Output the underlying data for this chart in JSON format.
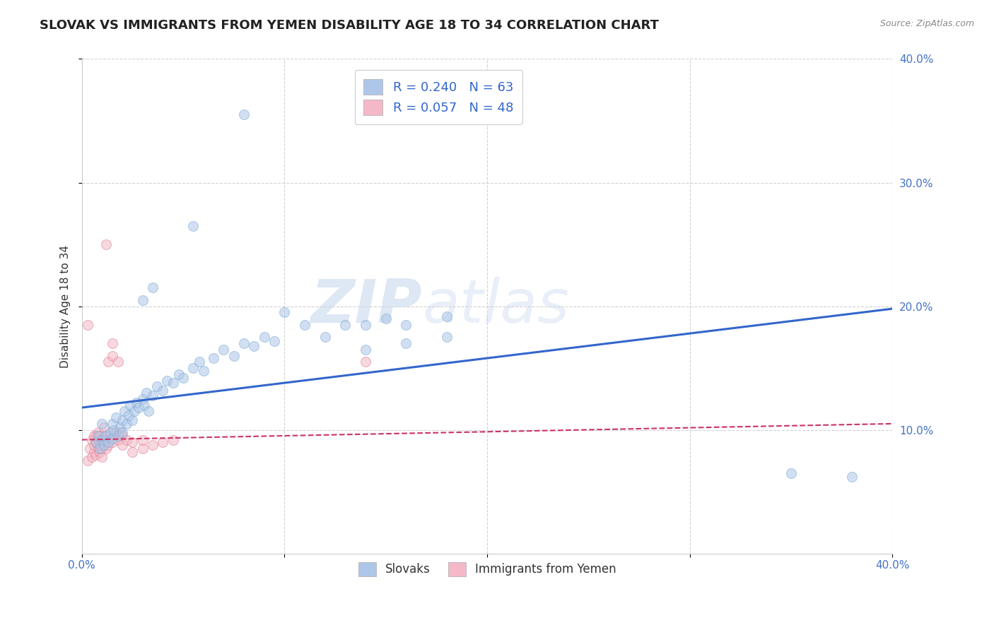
{
  "title": "SLOVAK VS IMMIGRANTS FROM YEMEN DISABILITY AGE 18 TO 34 CORRELATION CHART",
  "source": "Source: ZipAtlas.com",
  "ylabel": "Disability Age 18 to 34",
  "xlim": [
    0.0,
    0.4
  ],
  "ylim": [
    0.0,
    0.4
  ],
  "xticks": [
    0.0,
    0.1,
    0.2,
    0.3,
    0.4
  ],
  "yticks": [
    0.1,
    0.2,
    0.3,
    0.4
  ],
  "xticklabels": [
    "0.0%",
    "",
    "",
    "",
    "40.0%"
  ],
  "yticklabels_right": [
    "10.0%",
    "20.0%",
    "30.0%",
    "40.0%"
  ],
  "legend_entries": [
    {
      "label": "R = 0.240   N = 63",
      "color": "#aec6e8"
    },
    {
      "label": "R = 0.057   N = 48",
      "color": "#f4b8c8"
    }
  ],
  "blue_scatter": [
    [
      0.007,
      0.09
    ],
    [
      0.008,
      0.095
    ],
    [
      0.009,
      0.085
    ],
    [
      0.01,
      0.092
    ],
    [
      0.01,
      0.105
    ],
    [
      0.011,
      0.088
    ],
    [
      0.012,
      0.095
    ],
    [
      0.013,
      0.09
    ],
    [
      0.014,
      0.098
    ],
    [
      0.015,
      0.093
    ],
    [
      0.015,
      0.105
    ],
    [
      0.016,
      0.1
    ],
    [
      0.017,
      0.11
    ],
    [
      0.018,
      0.095
    ],
    [
      0.019,
      0.102
    ],
    [
      0.02,
      0.098
    ],
    [
      0.02,
      0.108
    ],
    [
      0.021,
      0.115
    ],
    [
      0.022,
      0.105
    ],
    [
      0.023,
      0.112
    ],
    [
      0.024,
      0.12
    ],
    [
      0.025,
      0.108
    ],
    [
      0.026,
      0.115
    ],
    [
      0.027,
      0.122
    ],
    [
      0.028,
      0.118
    ],
    [
      0.03,
      0.125
    ],
    [
      0.031,
      0.12
    ],
    [
      0.032,
      0.13
    ],
    [
      0.033,
      0.115
    ],
    [
      0.035,
      0.128
    ],
    [
      0.037,
      0.135
    ],
    [
      0.04,
      0.132
    ],
    [
      0.042,
      0.14
    ],
    [
      0.045,
      0.138
    ],
    [
      0.048,
      0.145
    ],
    [
      0.05,
      0.142
    ],
    [
      0.055,
      0.15
    ],
    [
      0.058,
      0.155
    ],
    [
      0.06,
      0.148
    ],
    [
      0.065,
      0.158
    ],
    [
      0.07,
      0.165
    ],
    [
      0.075,
      0.16
    ],
    [
      0.08,
      0.17
    ],
    [
      0.085,
      0.168
    ],
    [
      0.09,
      0.175
    ],
    [
      0.095,
      0.172
    ],
    [
      0.03,
      0.205
    ],
    [
      0.035,
      0.215
    ],
    [
      0.055,
      0.265
    ],
    [
      0.08,
      0.355
    ],
    [
      0.1,
      0.195
    ],
    [
      0.11,
      0.185
    ],
    [
      0.12,
      0.175
    ],
    [
      0.13,
      0.185
    ],
    [
      0.14,
      0.185
    ],
    [
      0.15,
      0.19
    ],
    [
      0.16,
      0.185
    ],
    [
      0.18,
      0.192
    ],
    [
      0.14,
      0.165
    ],
    [
      0.16,
      0.17
    ],
    [
      0.18,
      0.175
    ],
    [
      0.35,
      0.065
    ],
    [
      0.38,
      0.062
    ]
  ],
  "pink_scatter": [
    [
      0.003,
      0.075
    ],
    [
      0.004,
      0.085
    ],
    [
      0.005,
      0.078
    ],
    [
      0.005,
      0.092
    ],
    [
      0.006,
      0.082
    ],
    [
      0.006,
      0.095
    ],
    [
      0.006,
      0.088
    ],
    [
      0.007,
      0.08
    ],
    [
      0.007,
      0.09
    ],
    [
      0.007,
      0.095
    ],
    [
      0.008,
      0.085
    ],
    [
      0.008,
      0.092
    ],
    [
      0.008,
      0.098
    ],
    [
      0.009,
      0.082
    ],
    [
      0.009,
      0.088
    ],
    [
      0.009,
      0.095
    ],
    [
      0.01,
      0.078
    ],
    [
      0.01,
      0.085
    ],
    [
      0.01,
      0.092
    ],
    [
      0.011,
      0.09
    ],
    [
      0.011,
      0.096
    ],
    [
      0.011,
      0.102
    ],
    [
      0.012,
      0.085
    ],
    [
      0.012,
      0.092
    ],
    [
      0.013,
      0.088
    ],
    [
      0.014,
      0.095
    ],
    [
      0.015,
      0.09
    ],
    [
      0.016,
      0.095
    ],
    [
      0.017,
      0.098
    ],
    [
      0.018,
      0.092
    ],
    [
      0.019,
      0.098
    ],
    [
      0.02,
      0.088
    ],
    [
      0.02,
      0.095
    ],
    [
      0.022,
      0.092
    ],
    [
      0.025,
      0.082
    ],
    [
      0.025,
      0.09
    ],
    [
      0.03,
      0.085
    ],
    [
      0.03,
      0.092
    ],
    [
      0.035,
      0.088
    ],
    [
      0.04,
      0.09
    ],
    [
      0.045,
      0.092
    ],
    [
      0.003,
      0.185
    ],
    [
      0.012,
      0.25
    ],
    [
      0.013,
      0.155
    ],
    [
      0.015,
      0.16
    ],
    [
      0.015,
      0.17
    ],
    [
      0.018,
      0.155
    ],
    [
      0.14,
      0.155
    ]
  ],
  "blue_line_x": [
    0.0,
    0.4
  ],
  "blue_line_y": [
    0.118,
    0.198
  ],
  "pink_line_x": [
    0.0,
    0.4
  ],
  "pink_line_y": [
    0.092,
    0.105
  ],
  "scatter_size": 100,
  "scatter_alpha": 0.55,
  "blue_color": "#aec6e8",
  "blue_edge": "#7aadd4",
  "pink_color": "#f4b8c8",
  "pink_edge": "#e08090",
  "line_blue": "#3366cc",
  "line_pink": "#cc3366",
  "watermark_zip": "ZIP",
  "watermark_atlas": "atlas",
  "background_color": "#ffffff",
  "grid_color": "#cccccc",
  "title_fontsize": 13,
  "axis_fontsize": 11,
  "tick_fontsize": 11
}
